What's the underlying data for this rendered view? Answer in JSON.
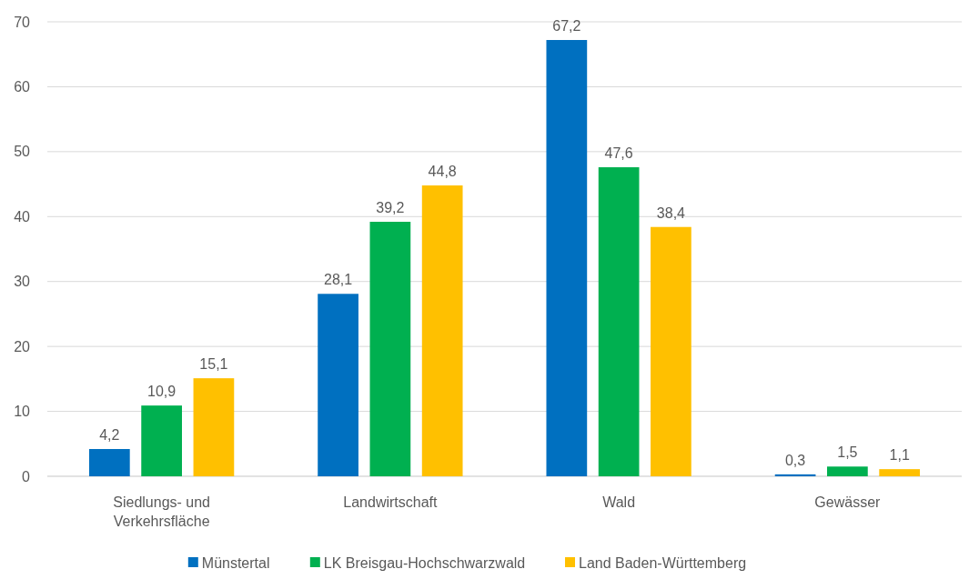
{
  "chart_data": {
    "type": "bar",
    "categories": [
      "Siedlungs- und Verkehrsfläche",
      "Landwirtschaft",
      "Wald",
      "Gewässer"
    ],
    "series": [
      {
        "name": "Münstertal",
        "color": "#0070c0",
        "values": [
          4.2,
          28.1,
          67.2,
          0.3
        ],
        "value_labels": [
          "4,2",
          "28,1",
          "67,2",
          "0,3"
        ]
      },
      {
        "name": "LK Breisgau-Hochschwarzwald",
        "color": "#00b050",
        "values": [
          10.9,
          39.2,
          47.6,
          1.5
        ],
        "value_labels": [
          "10,9",
          "39,2",
          "47,6",
          "1,5"
        ]
      },
      {
        "name": "Land Baden-Württemberg",
        "color": "#ffc000",
        "values": [
          15.1,
          44.8,
          38.4,
          1.1
        ],
        "value_labels": [
          "15,1",
          "44,8",
          "38,4",
          "1,1"
        ]
      }
    ],
    "ylim": [
      0,
      70
    ],
    "yticks": [
      0,
      10,
      20,
      30,
      40,
      50,
      60,
      70
    ],
    "grid": "y",
    "legend": "bottom"
  }
}
